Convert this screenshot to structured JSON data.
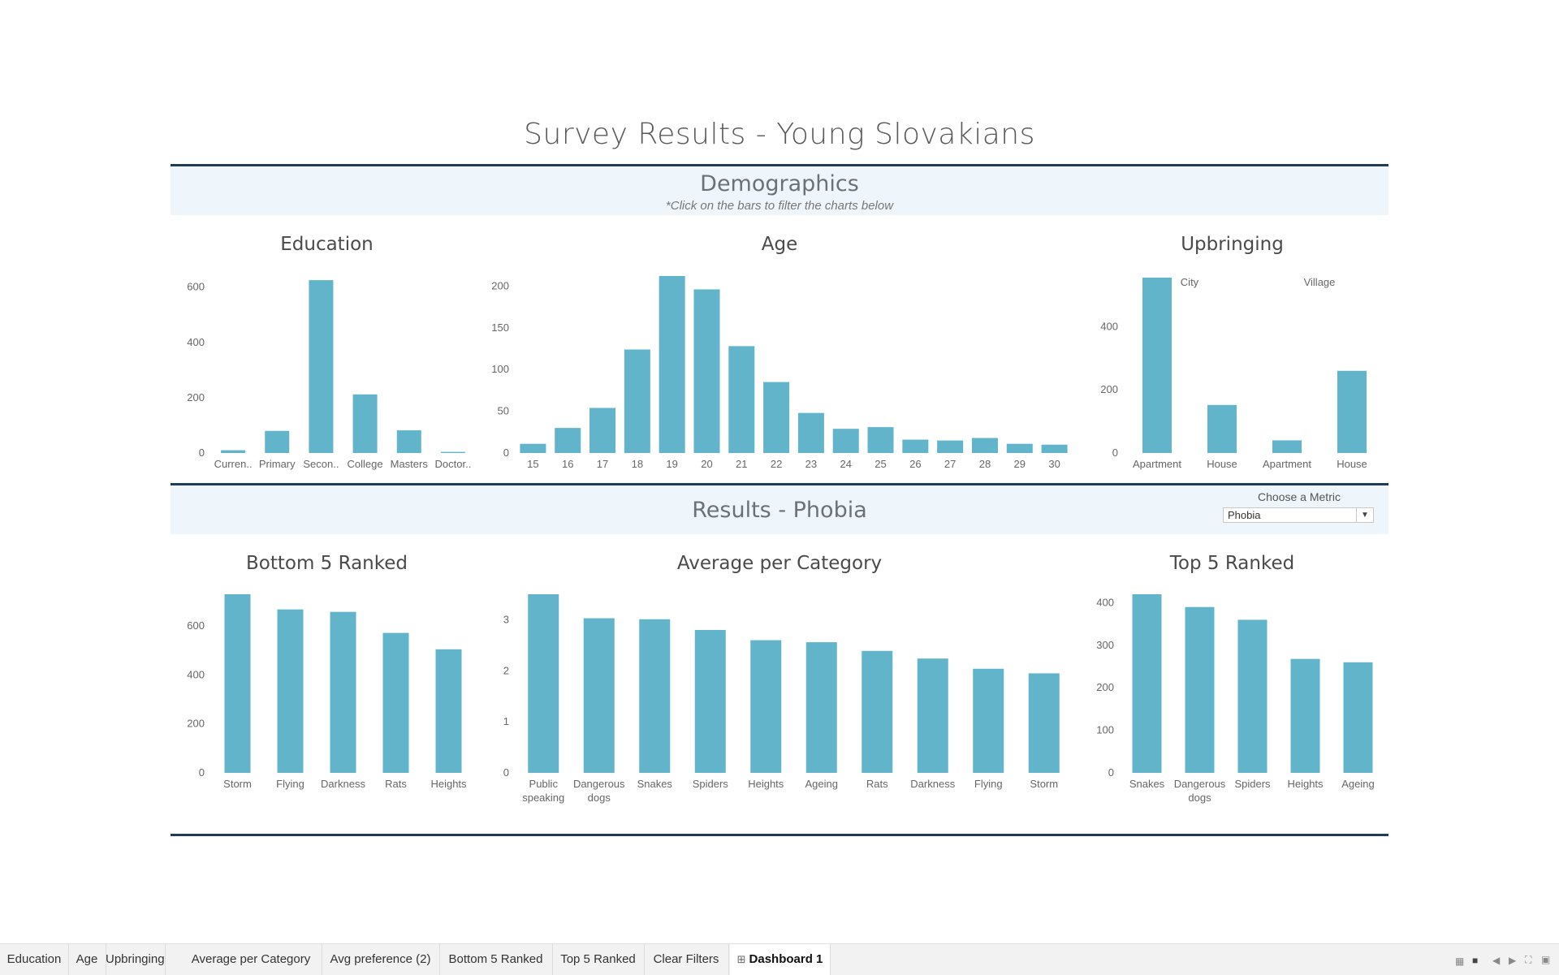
{
  "dashboard_title": "Survey Results - Young Slovakians",
  "demographics": {
    "title": "Demographics",
    "subtitle": "*Click on the bars to filter the charts below"
  },
  "results": {
    "title": "Results - Phobia",
    "metric_label": "Choose a Metric",
    "metric_value": "Phobia"
  },
  "tabs": [
    "Education",
    "Age",
    "Upbringing",
    "Average per Category",
    "Avg preference (2)",
    "Bottom 5 Ranked",
    "Top 5 Ranked",
    "Clear Filters",
    "Dashboard 1"
  ],
  "active_tab": "Dashboard 1",
  "bar_color": "#62b4cb",
  "chart_data": [
    {
      "id": "education",
      "type": "bar",
      "title": "Education",
      "categories": [
        "Curren..",
        "Primary",
        "Secon..",
        "College",
        "Masters",
        "Doctor.."
      ],
      "values": [
        10,
        80,
        625,
        212,
        82,
        4
      ],
      "yticks": [
        0,
        200,
        400,
        600
      ],
      "ylim": [
        0,
        640
      ]
    },
    {
      "id": "age",
      "type": "bar",
      "title": "Age",
      "categories": [
        "15",
        "16",
        "17",
        "18",
        "19",
        "20",
        "21",
        "22",
        "23",
        "24",
        "25",
        "26",
        "27",
        "28",
        "29",
        "30"
      ],
      "values": [
        11,
        30,
        54,
        124,
        212,
        196,
        128,
        85,
        48,
        29,
        31,
        16,
        15,
        18,
        11,
        10
      ],
      "yticks": [
        0,
        50,
        100,
        150,
        200
      ],
      "ylim": [
        0,
        212
      ]
    },
    {
      "id": "upbringing",
      "type": "bar",
      "title": "Upbringing",
      "groups": [
        "City",
        "Village"
      ],
      "categories": [
        "Apartment",
        "House",
        "Apartment",
        "House"
      ],
      "values": [
        555,
        152,
        40,
        260
      ],
      "yticks": [
        0,
        200,
        400
      ],
      "ylim": [
        0,
        560
      ]
    },
    {
      "id": "bottom5",
      "type": "bar",
      "title": "Bottom 5 Ranked",
      "categories": [
        "Storm",
        "Flying",
        "Darkness",
        "Rats",
        "Heights"
      ],
      "values": [
        730,
        668,
        658,
        572,
        505
      ],
      "yticks": [
        0,
        200,
        400,
        600
      ],
      "ylim": [
        0,
        730
      ]
    },
    {
      "id": "average",
      "type": "bar",
      "title": "Average per Category",
      "categories": [
        "Public speaking",
        "Dangerous dogs",
        "Snakes",
        "Spiders",
        "Heights",
        "Ageing",
        "Rats",
        "Darkness",
        "Flying",
        "Storm"
      ],
      "values": [
        3.5,
        3.03,
        3.01,
        2.8,
        2.6,
        2.56,
        2.39,
        2.24,
        2.04,
        1.95
      ],
      "yticks": [
        0,
        1,
        2,
        3
      ],
      "ylim": [
        0,
        3.5
      ]
    },
    {
      "id": "top5",
      "type": "bar",
      "title": "Top 5 Ranked",
      "categories": [
        "Snakes",
        "Dangerous dogs",
        "Spiders",
        "Heights",
        "Ageing"
      ],
      "values": [
        420,
        390,
        360,
        268,
        260
      ],
      "yticks": [
        0,
        100,
        200,
        300,
        400
      ],
      "ylim": [
        0,
        420
      ]
    }
  ]
}
